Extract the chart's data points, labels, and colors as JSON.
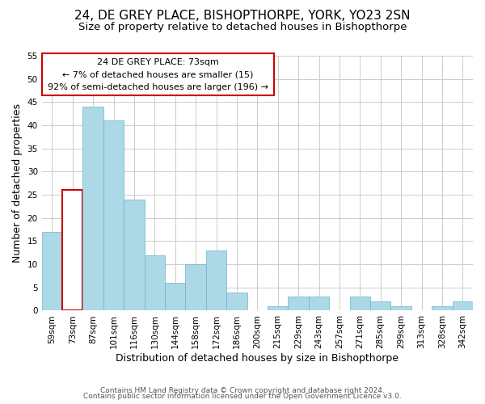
{
  "title": "24, DE GREY PLACE, BISHOPTHORPE, YORK, YO23 2SN",
  "subtitle": "Size of property relative to detached houses in Bishopthorpe",
  "xlabel": "Distribution of detached houses by size in Bishopthorpe",
  "ylabel": "Number of detached properties",
  "bin_labels": [
    "59sqm",
    "73sqm",
    "87sqm",
    "101sqm",
    "116sqm",
    "130sqm",
    "144sqm",
    "158sqm",
    "172sqm",
    "186sqm",
    "200sqm",
    "215sqm",
    "229sqm",
    "243sqm",
    "257sqm",
    "271sqm",
    "285sqm",
    "299sqm",
    "313sqm",
    "328sqm",
    "342sqm"
  ],
  "bar_heights": [
    17,
    26,
    44,
    41,
    24,
    12,
    6,
    10,
    13,
    4,
    0,
    1,
    3,
    3,
    0,
    3,
    2,
    1,
    0,
    1,
    2
  ],
  "bar_color": "#add8e6",
  "bar_edge_color": "#6ab4d0",
  "highlight_bar_index": 1,
  "highlight_bar_color": "#cc0000",
  "ylim": [
    0,
    55
  ],
  "yticks": [
    0,
    5,
    10,
    15,
    20,
    25,
    30,
    35,
    40,
    45,
    50,
    55
  ],
  "annotation_line1": "24 DE GREY PLACE: 73sqm",
  "annotation_line2": "← 7% of detached houses are smaller (15)",
  "annotation_line3": "92% of semi-detached houses are larger (196) →",
  "footer_line1": "Contains HM Land Registry data © Crown copyright and database right 2024.",
  "footer_line2": "Contains public sector information licensed under the Open Government Licence v3.0.",
  "background_color": "#ffffff",
  "grid_color": "#cccccc",
  "title_fontsize": 11,
  "subtitle_fontsize": 9.5,
  "axis_label_fontsize": 9,
  "tick_label_fontsize": 7.5,
  "annotation_fontsize": 8,
  "footer_fontsize": 6.5
}
